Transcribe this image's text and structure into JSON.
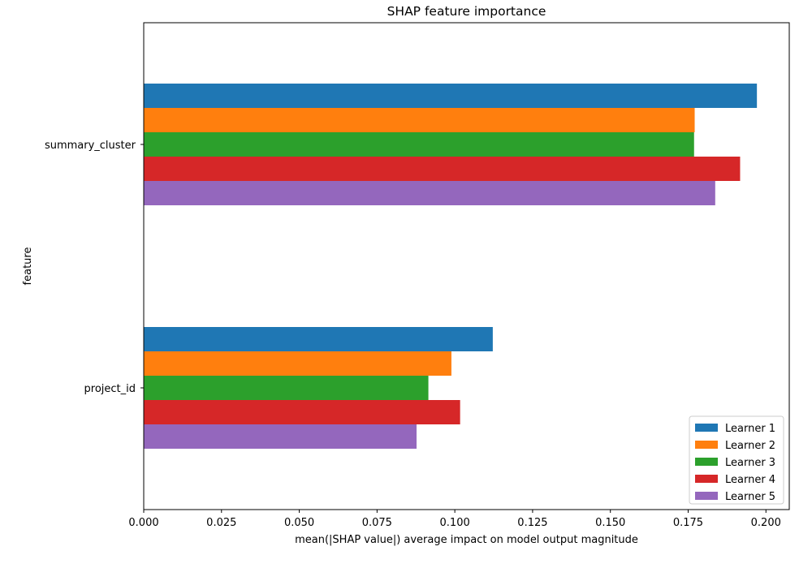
{
  "chart_data": {
    "type": "bar",
    "orientation": "horizontal",
    "title": "SHAP feature importance",
    "xlabel": "mean(|SHAP value|) average impact on model output magnitude",
    "ylabel": "feature",
    "categories": [
      "project_id",
      "summary_cluster"
    ],
    "xlim": [
      0.0,
      0.2075
    ],
    "xticks": [
      0.0,
      0.025,
      0.05,
      0.075,
      0.1,
      0.125,
      0.15,
      0.175,
      0.2
    ],
    "xtick_labels": [
      "0.000",
      "0.025",
      "0.050",
      "0.075",
      "0.100",
      "0.125",
      "0.150",
      "0.175",
      "0.200"
    ],
    "grid": false,
    "legend_position": "lower right",
    "series": [
      {
        "name": "Learner 1",
        "color": "#1f77b4",
        "values": [
          0.1122,
          0.1971
        ]
      },
      {
        "name": "Learner 2",
        "color": "#ff7f0e",
        "values": [
          0.0989,
          0.1771
        ]
      },
      {
        "name": "Learner 3",
        "color": "#2ca02c",
        "values": [
          0.0915,
          0.1769
        ]
      },
      {
        "name": "Learner 4",
        "color": "#d62728",
        "values": [
          0.1017,
          0.1917
        ]
      },
      {
        "name": "Learner 5",
        "color": "#9467bd",
        "values": [
          0.0877,
          0.1837
        ]
      }
    ]
  }
}
